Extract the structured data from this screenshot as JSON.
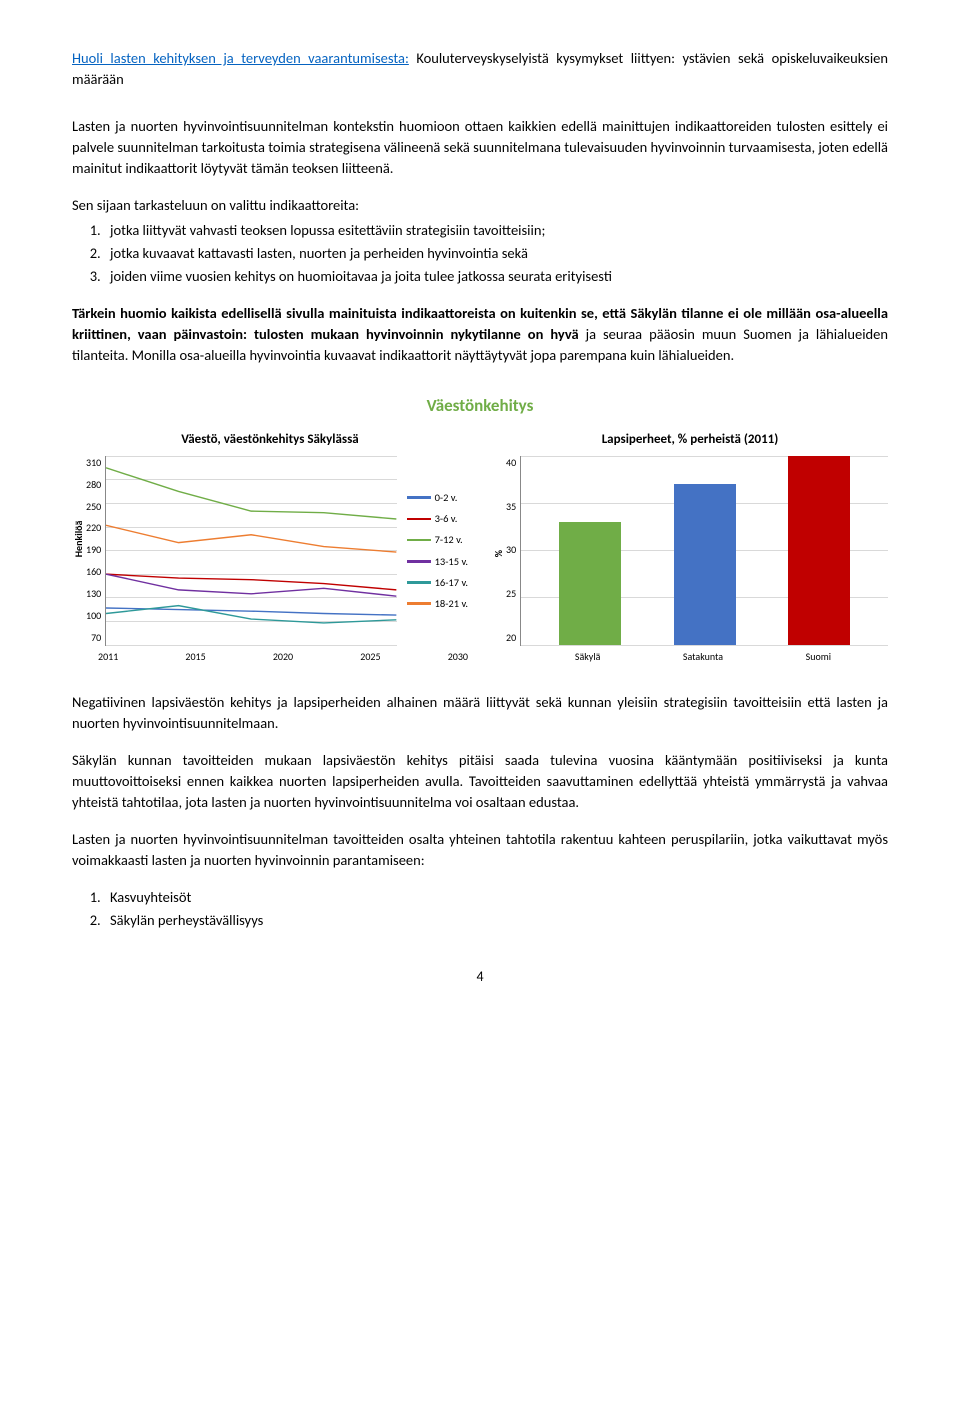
{
  "intro": {
    "link_text": "Huoli lasten kehityksen ja terveyden vaarantumisesta:",
    "after_link": " Kouluterveyskyselyistä kysymykset liittyen: ystävien sekä opiskeluvaikeuksien määrään"
  },
  "para1": "Lasten ja nuorten hyvinvointisuunnitelman kontekstin huomioon ottaen kaikkien edellä mainittujen indikaattoreiden tulosten esittely ei palvele suunnitelman tarkoitusta toimia strategisena välineenä sekä suunnitelmana tulevaisuuden hyvinvoinnin turvaamisesta, joten edellä mainitut indikaattorit löytyvät tämän teoksen liitteenä.",
  "lead_list": "Sen sijaan tarkasteluun on valittu indikaattoreita:",
  "list1": [
    "jotka liittyvät vahvasti teoksen lopussa esitettäviin strategisiin tavoitteisiin;",
    "jotka kuvaavat kattavasti lasten, nuorten ja perheiden hyvinvointia sekä",
    "joiden viime vuosien kehitys on huomioitavaa ja joita tulee jatkossa seurata erityisesti"
  ],
  "para2_pre_bold": "Tärkein huomio kaikista edellisellä sivulla mainituista indikaattoreista on kuitenkin se, että Säkylän tilanne ei ole millään osa-alueella kriittinen, vaan päinvastoin: tulosten mukaan hyvinvoinnin nykytilanne on hyvä",
  "para2_rest": " ja seuraa pääosin muun Suomen ja lähialueiden tilanteita. Monilla osa-alueilla hyvinvointia kuvaavat indikaattorit näyttäytyvät jopa parempana kuin lähialueiden.",
  "section_title": "Väestönkehitys",
  "line_chart": {
    "title": "Väestö, väestönkehitys Säkylässä",
    "ylabel": "Henkilöä",
    "yticks": [
      "310",
      "280",
      "250",
      "220",
      "190",
      "160",
      "130",
      "100",
      "70"
    ],
    "xticks": [
      "2011",
      "2015",
      "2020",
      "2025",
      "2030"
    ],
    "ymin": 70,
    "ymax": 310,
    "series": [
      {
        "label": "0-2 v.",
        "color": "#4472c4",
        "vals": [
          117,
          115,
          113,
          110,
          108
        ]
      },
      {
        "label": "3-6 v.",
        "color": "#c00000",
        "vals": [
          160,
          155,
          153,
          148,
          140
        ]
      },
      {
        "label": "7-12 v.",
        "color": "#70ad47",
        "vals": [
          295,
          265,
          240,
          238,
          230
        ]
      },
      {
        "label": "13-15 v.",
        "color": "#7030a0",
        "vals": [
          160,
          140,
          135,
          142,
          132
        ]
      },
      {
        "label": "16-17 v.",
        "color": "#2e9999",
        "vals": [
          110,
          120,
          103,
          98,
          102
        ]
      },
      {
        "label": "18-21 v.",
        "color": "#ed7d31",
        "vals": [
          222,
          200,
          210,
          195,
          188
        ]
      }
    ]
  },
  "bar_chart": {
    "title": "Lapsiperheet, % perheistä (2011)",
    "ylabel": "%",
    "yticks": [
      "40",
      "35",
      "30",
      "25",
      "20"
    ],
    "ymin": 20,
    "ymax": 40,
    "bars": [
      {
        "label": "Säkylä",
        "value": 33,
        "color": "#70ad47"
      },
      {
        "label": "Satakunta",
        "value": 37,
        "color": "#4472c4"
      },
      {
        "label": "Suomi",
        "value": 40,
        "color": "#c00000"
      }
    ]
  },
  "para3": "Negatiivinen lapsiväestön kehitys ja lapsiperheiden alhainen määrä liittyvät sekä kunnan yleisiin strategisiin tavoitteisiin että lasten ja nuorten hyvinvointisuunnitelmaan.",
  "para4": "Säkylän kunnan tavoitteiden mukaan lapsiväestön kehitys pitäisi saada tulevina vuosina kääntymään positiiviseksi ja kunta muuttovoittoiseksi ennen kaikkea nuorten lapsiperheiden avulla. Tavoitteiden saavuttaminen edellyttää yhteistä ymmärrystä ja vahvaa yhteistä tahtotilaa, jota lasten ja nuorten hyvinvointisuunnitelma voi osaltaan edustaa.",
  "para5": "Lasten ja nuorten hyvinvointisuunnitelman tavoitteiden osalta yhteinen tahtotila rakentuu kahteen peruspilariin, jotka vaikuttavat myös voimakkaasti lasten ja nuorten hyvinvoinnin parantamiseen:",
  "list2": [
    "Kasvuyhteisöt",
    "Säkylän perheystävällisyys"
  ],
  "page_num": "4"
}
